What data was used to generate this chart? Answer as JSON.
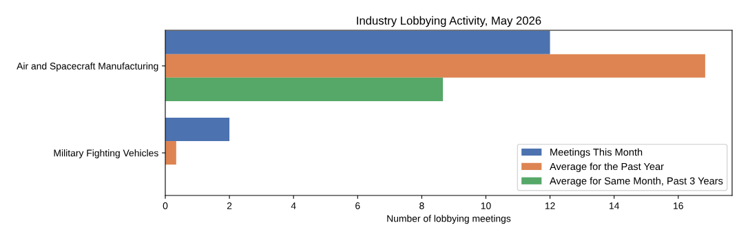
{
  "chart_data": {
    "type": "bar",
    "orientation": "horizontal",
    "title": "Industry Lobbying Activity, May 2026",
    "xlabel": "Number of lobbying meetings",
    "categories": [
      "Air and Spacecraft Manufacturing",
      "Military Fighting Vehicles"
    ],
    "series": [
      {
        "name": "Meetings This Month",
        "color": "#4c72b0",
        "values": [
          12,
          2
        ]
      },
      {
        "name": "Average for the Past Year",
        "color": "#dd8452",
        "values": [
          16.84,
          0.34
        ]
      },
      {
        "name": "Average for Same Month, Past 3 Years",
        "color": "#55a868",
        "values": [
          8.66,
          0
        ]
      }
    ],
    "xlim": [
      0,
      17.68
    ],
    "xticks": [
      0,
      2,
      4,
      6,
      8,
      10,
      12,
      14,
      16
    ],
    "grid": false,
    "legend": "bottom right"
  }
}
